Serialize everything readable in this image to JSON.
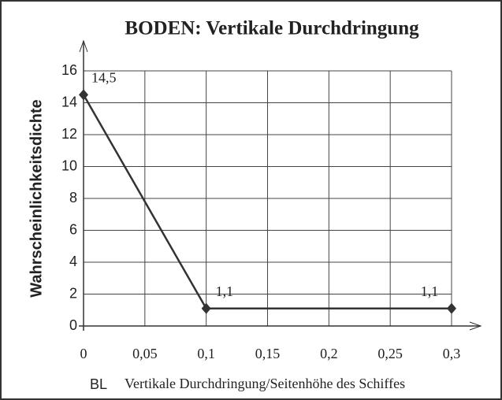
{
  "chart_data": {
    "type": "line",
    "title": "BODEN: Vertikale Durchdringung",
    "ylabel": "Wahrscheinlichkeitsdichte",
    "xlabel": "Vertikale Durchdringung/Seitenhöhe des Schiffes",
    "annotation": "BL",
    "x": [
      0,
      0.1,
      0.3
    ],
    "series": [
      {
        "name": null,
        "color": "#333333",
        "values": [
          14.5,
          1.1,
          1.1
        ],
        "value_labels": [
          "14,5",
          "1,1",
          "1,1"
        ]
      }
    ],
    "xlim": [
      0,
      0.3
    ],
    "xticks": [
      0,
      {
        "value": 0.05,
        "label": "0,05"
      },
      {
        "value": 0.1,
        "label": "0,1"
      },
      {
        "value": 0.15,
        "label": "0,15"
      },
      {
        "value": 0.2,
        "label": "0,2"
      },
      {
        "value": 0.25,
        "label": "0,25"
      },
      {
        "value": 0.3,
        "label": "0,3"
      }
    ],
    "ylim": [
      0,
      16
    ],
    "yticks": [
      0,
      2,
      4,
      6,
      8,
      10,
      12,
      14,
      16
    ],
    "grid": true
  }
}
